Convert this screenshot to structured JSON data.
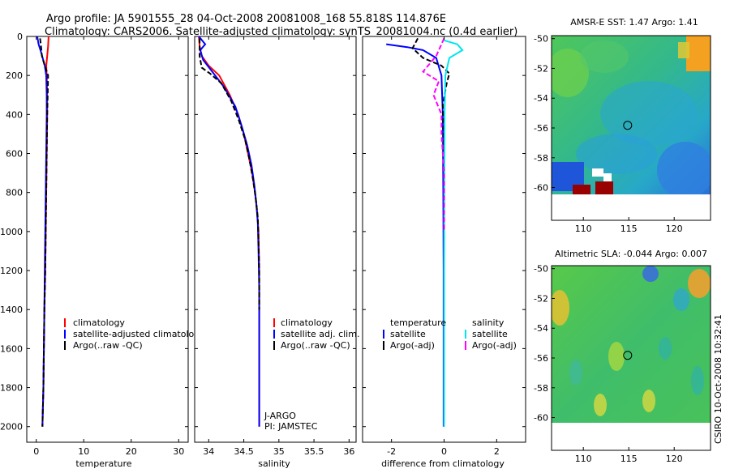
{
  "header": {
    "line1": "Argo profile: JA 5901555_28 04-Oct-2008 20081008_168 55.818S 114.876E",
    "line2": "Climatology: CARS2006. Satellite-adjusted climatology: synTS_20081004.nc (0.4d earlier)"
  },
  "side_label": "CSIRO 10-Oct-2008 10:32:41",
  "colors": {
    "climatology": "#ff0000",
    "satellite": "#0000ff",
    "argo": "#000000",
    "sat_salinity": "#00e5ee",
    "argo_salinity": "#ff00ff"
  },
  "chart_data": [
    {
      "type": "line",
      "id": "temperature",
      "xlabel": "temperature",
      "ylabel": "",
      "xlim": [
        -2,
        32
      ],
      "ylim": [
        2080,
        0
      ],
      "xticks": [
        0,
        10,
        20,
        30
      ],
      "yticks": [
        0,
        200,
        400,
        600,
        800,
        1000,
        1200,
        1400,
        1600,
        1800,
        2000
      ],
      "legend": [
        "climatology",
        "satellite-adjusted climatology",
        "Argo(..raw -QC)"
      ],
      "series": [
        {
          "name": "climatology",
          "color": "#ff0000",
          "x": [
            2.6,
            2.5,
            2.3,
            2.1,
            2.2,
            2.3,
            2.3,
            2.2,
            2.1,
            2.0,
            1.9,
            1.7,
            1.6,
            1.5,
            1.4,
            1.3
          ],
          "depth": [
            0,
            50,
            100,
            150,
            200,
            300,
            400,
            600,
            800,
            1000,
            1200,
            1400,
            1600,
            1800,
            1900,
            2000
          ]
        },
        {
          "name": "satellite-adjusted climatology",
          "color": "#0000ff",
          "x": [
            0.2,
            0.5,
            1.0,
            1.8,
            2.1,
            2.2,
            2.2,
            2.1,
            2.0,
            1.9,
            1.8,
            1.7,
            1.6,
            1.5,
            1.4,
            1.3
          ],
          "depth": [
            0,
            40,
            80,
            150,
            200,
            300,
            400,
            600,
            800,
            1000,
            1200,
            1400,
            1600,
            1800,
            1900,
            2000
          ]
        },
        {
          "name": "Argo(..raw -QC)",
          "color": "#000000",
          "x": [
            0.8,
            1.0,
            1.2,
            1.8,
            2.5,
            2.4,
            2.3,
            2.2,
            2.1,
            2.0,
            1.9,
            1.7,
            1.6,
            1.5,
            1.4,
            1.3
          ],
          "depth": [
            10,
            50,
            100,
            150,
            200,
            300,
            400,
            600,
            800,
            1000,
            1200,
            1400,
            1600,
            1800,
            1900,
            2000
          ]
        }
      ]
    },
    {
      "type": "line",
      "id": "salinity",
      "xlabel": "salinity",
      "ylabel": "",
      "xlim": [
        33.8,
        36.1
      ],
      "ylim": [
        2080,
        0
      ],
      "xticks": [
        34,
        34.5,
        35,
        35.5,
        36
      ],
      "yticks": [
        0,
        200,
        400,
        600,
        800,
        1000,
        1200,
        1400,
        1600,
        1800,
        2000
      ],
      "legend": [
        "climatology",
        "satellite adj. clim.",
        "Argo(..raw -QC)"
      ],
      "annotation": [
        "J-ARGO",
        "PI: JAMSTEC"
      ],
      "series": [
        {
          "name": "climatology",
          "color": "#ff0000",
          "x": [
            33.86,
            33.87,
            33.9,
            34.0,
            34.15,
            34.3,
            34.42,
            34.5,
            34.56,
            34.62,
            34.66,
            34.69,
            34.71,
            34.72,
            34.72,
            34.72,
            34.72,
            34.72
          ],
          "depth": [
            0,
            50,
            100,
            150,
            200,
            300,
            400,
            500,
            600,
            700,
            800,
            900,
            1000,
            1200,
            1400,
            1600,
            1800,
            2000
          ]
        },
        {
          "name": "satellite adj. clim.",
          "color": "#0000ff",
          "x": [
            33.86,
            33.95,
            33.88,
            33.92,
            34.05,
            34.22,
            34.38,
            34.47,
            34.55,
            34.61,
            34.65,
            34.68,
            34.7,
            34.71,
            34.72,
            34.72,
            34.72,
            34.72,
            34.72
          ],
          "depth": [
            0,
            40,
            70,
            120,
            180,
            260,
            360,
            460,
            560,
            660,
            760,
            860,
            960,
            1100,
            1300,
            1500,
            1700,
            1900,
            2000
          ]
        },
        {
          "name": "Argo(..raw -QC)",
          "color": "#000000",
          "x": [
            33.87,
            33.87,
            33.9,
            34.02,
            34.18,
            34.32,
            34.43,
            34.52,
            34.58,
            34.63,
            34.67,
            34.7,
            34.71,
            34.72,
            34.72
          ],
          "depth": [
            10,
            100,
            160,
            190,
            240,
            330,
            430,
            530,
            630,
            730,
            830,
            930,
            1050,
            1200,
            1400
          ]
        }
      ]
    },
    {
      "type": "line",
      "id": "difference",
      "xlabel": "difference from climatology",
      "ylabel": "",
      "xlim": [
        -3.1,
        3.1
      ],
      "ylim": [
        2080,
        0
      ],
      "xticks": [
        -2,
        0,
        2
      ],
      "yticks": [
        0,
        200,
        400,
        600,
        800,
        1000,
        1200,
        1400,
        1600,
        1800,
        2000
      ],
      "legend_header": [
        "temperature",
        "salinity"
      ],
      "legend": [
        "satellite",
        "Argo(-adj)",
        "satellite",
        "Argo(-adj)"
      ],
      "series": [
        {
          "name": "temperature satellite",
          "color": "#0000ff",
          "x": [
            -2.2,
            -1.4,
            -0.8,
            -0.3,
            -0.1,
            -0.05,
            -0.03,
            -0.02,
            -0.02,
            -0.02
          ],
          "depth": [
            40,
            55,
            70,
            110,
            200,
            400,
            800,
            1200,
            1600,
            2000
          ]
        },
        {
          "name": "temperature Argo(-adj)",
          "color": "#000000",
          "x": [
            -1.0,
            -1.2,
            -0.8,
            -0.1,
            0.2,
            0.1,
            -0.05,
            0.0,
            0.0,
            0.0
          ],
          "depth": [
            10,
            60,
            110,
            150,
            190,
            240,
            350,
            600,
            1000,
            1400
          ]
        },
        {
          "name": "salinity satellite",
          "color": "#00e5ee",
          "x": [
            0.0,
            0.5,
            0.7,
            0.2,
            0.05,
            0.02,
            0.01,
            0.0,
            0.0,
            0.0
          ],
          "depth": [
            20,
            40,
            70,
            110,
            200,
            400,
            800,
            1200,
            1600,
            2000
          ]
        },
        {
          "name": "salinity Argo(-adj)",
          "color": "#ff00ff",
          "x": [
            0.0,
            -0.3,
            -0.8,
            -0.2,
            -0.4,
            -0.1,
            -0.1,
            0.0,
            0.0
          ],
          "depth": [
            10,
            100,
            180,
            230,
            300,
            400,
            500,
            700,
            1000
          ]
        }
      ]
    },
    {
      "type": "heatmap",
      "id": "sst_map",
      "title": "AMSR-E SST: 1.47 Argo: 1.41",
      "xlim": [
        106.5,
        124
      ],
      "ylim": [
        -62.2,
        -49.8
      ],
      "xticks": [
        110,
        115,
        120
      ],
      "yticks": [
        -50,
        -52,
        -54,
        -56,
        -58,
        -60
      ],
      "marker": {
        "lon": 114.876,
        "lat": -55.818
      }
    },
    {
      "type": "heatmap",
      "id": "sla_map",
      "title": "Altimetric SLA: -0.044 Argo: 0.007",
      "xlim": [
        106.5,
        124
      ],
      "ylim": [
        -62.2,
        -49.8
      ],
      "xticks": [
        110,
        115,
        120
      ],
      "yticks": [
        -50,
        -52,
        -54,
        -56,
        -58,
        -60
      ],
      "marker": {
        "lon": 114.876,
        "lat": -55.818
      }
    }
  ]
}
